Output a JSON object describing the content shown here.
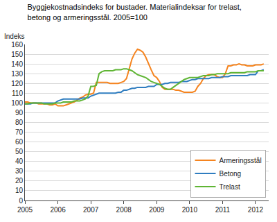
{
  "chart_data": {
    "type": "line",
    "title": "Byggjekostnadsindeks for bustader. Materialindeksar for trelast,\nbetong og armeringsstål. 2005=100",
    "y_label": "Indeks",
    "x": [
      2005,
      2005.083,
      2005.167,
      2005.25,
      2005.333,
      2005.417,
      2005.5,
      2005.583,
      2005.667,
      2005.75,
      2005.833,
      2005.917,
      2006,
      2006.083,
      2006.167,
      2006.25,
      2006.333,
      2006.417,
      2006.5,
      2006.583,
      2006.667,
      2006.75,
      2006.833,
      2006.917,
      2007,
      2007.083,
      2007.167,
      2007.25,
      2007.333,
      2007.417,
      2007.5,
      2007.583,
      2007.667,
      2007.75,
      2007.833,
      2007.917,
      2008,
      2008.083,
      2008.167,
      2008.25,
      2008.333,
      2008.417,
      2008.5,
      2008.583,
      2008.667,
      2008.75,
      2008.833,
      2008.917,
      2009,
      2009.083,
      2009.167,
      2009.25,
      2009.333,
      2009.417,
      2009.5,
      2009.583,
      2009.667,
      2009.75,
      2009.833,
      2009.917,
      2010,
      2010.083,
      2010.167,
      2010.25,
      2010.333,
      2010.417,
      2010.5,
      2010.583,
      2010.667,
      2010.75,
      2010.833,
      2010.917,
      2011,
      2011.083,
      2011.167,
      2011.25,
      2011.333,
      2011.417,
      2011.5,
      2011.583,
      2011.667,
      2011.75,
      2011.833,
      2011.917,
      2012,
      2012.083,
      2012.167,
      2012.25
    ],
    "series": [
      {
        "name": "Armeringsstål",
        "color": "#f5841f",
        "values": [
          101,
          101,
          100,
          100,
          100,
          99,
          99,
          99,
          99,
          98,
          98,
          99,
          97,
          97,
          97,
          98,
          99,
          100,
          101,
          103,
          105,
          106,
          108,
          109,
          109,
          110,
          121,
          121,
          121,
          121,
          121,
          120,
          120,
          120,
          120,
          121,
          122,
          125,
          135,
          145,
          151,
          155,
          154,
          152,
          147,
          140,
          134,
          128,
          126,
          122,
          116,
          114,
          114,
          114,
          114,
          113,
          113,
          112,
          111,
          111,
          111,
          111,
          112,
          117,
          120,
          125,
          128,
          129,
          129,
          129,
          127,
          126,
          126,
          130,
          138,
          138,
          139,
          139,
          140,
          139,
          139,
          138,
          138,
          138,
          139,
          139,
          139,
          140
        ]
      },
      {
        "name": "Betong",
        "color": "#2f7dc0",
        "values": [
          99,
          99,
          99,
          100,
          100,
          100,
          100,
          100,
          100,
          100,
          100,
          100,
          102,
          103,
          104,
          104,
          104,
          104,
          104,
          104,
          104,
          105,
          105,
          105,
          107,
          108,
          109,
          110,
          110,
          110,
          110,
          110,
          110,
          110,
          111,
          111,
          113,
          113,
          114,
          115,
          115,
          116,
          116,
          116,
          116,
          117,
          117,
          117,
          119,
          119,
          119,
          120,
          120,
          121,
          121,
          121,
          121,
          122,
          122,
          122,
          123,
          124,
          124,
          125,
          125,
          125,
          125,
          125,
          126,
          126,
          126,
          126,
          127,
          127,
          127,
          128,
          128,
          128,
          128,
          128,
          128,
          128,
          129,
          129,
          129,
          133,
          133,
          134
        ]
      },
      {
        "name": "Trelast",
        "color": "#5fb534",
        "values": [
          99,
          99,
          100,
          100,
          100,
          100,
          100,
          99,
          99,
          99,
          99,
          100,
          100,
          100,
          101,
          101,
          101,
          101,
          102,
          102,
          102,
          103,
          104,
          107,
          117,
          117,
          118,
          130,
          132,
          133,
          133,
          133,
          133,
          134,
          134,
          134,
          135,
          135,
          134,
          133,
          131,
          129,
          128,
          127,
          126,
          124,
          122,
          121,
          120,
          119,
          117,
          115,
          114,
          114,
          116,
          118,
          120,
          122,
          124,
          125,
          126,
          126,
          126,
          126,
          127,
          128,
          128,
          128,
          129,
          129,
          130,
          130,
          130,
          130,
          130,
          131,
          131,
          131,
          131,
          131,
          131,
          132,
          132,
          132,
          132,
          133,
          133,
          133
        ]
      }
    ],
    "xlim": [
      2005,
      2012.4
    ],
    "xticks": [
      2005,
      2006,
      2007,
      2008,
      2009,
      2010,
      2011,
      2012
    ],
    "ylim": [
      0,
      160
    ],
    "yticks": [
      0,
      10,
      20,
      30,
      40,
      50,
      60,
      70,
      80,
      90,
      100,
      110,
      120,
      130,
      140,
      150,
      160
    ],
    "grid": true,
    "legend": "lower right"
  }
}
